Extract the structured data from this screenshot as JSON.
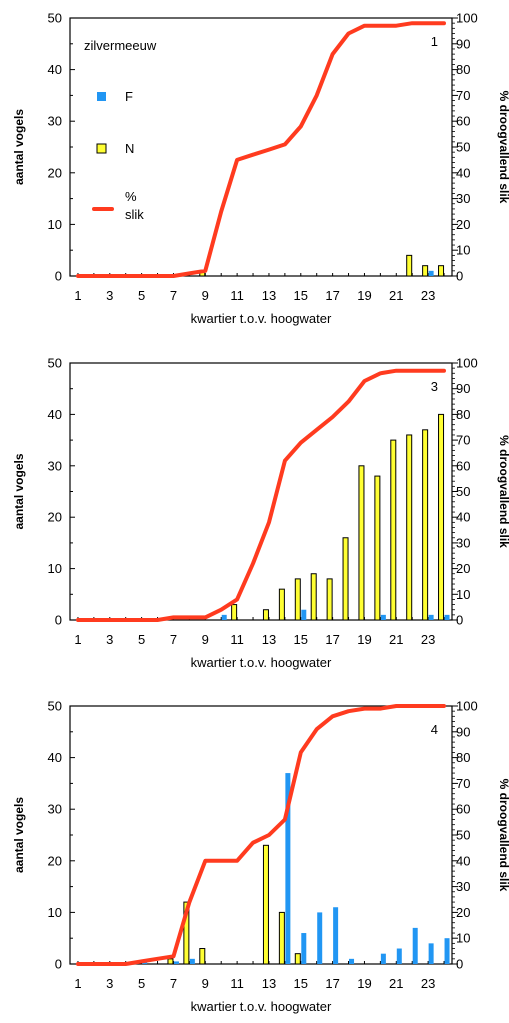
{
  "colors": {
    "F": "#2196f3",
    "N": "#ffff33",
    "slik": "#ff3b1f",
    "axis": "#000000"
  },
  "chart_data": [
    {
      "type": "bar",
      "panel_label": "1",
      "legend_title": "zilvermeeuw",
      "legend": {
        "F": "F",
        "N": "N",
        "slik": "%\nslik"
      },
      "xlabel": "kwartier t.o.v. hoogwater",
      "ylabel": "aantal vogels",
      "ylabel_right": "% droogvallend slik",
      "x_ticks": [
        1,
        3,
        5,
        7,
        9,
        11,
        13,
        15,
        17,
        19,
        21,
        23
      ],
      "y_ticks": [
        0,
        10,
        20,
        30,
        40,
        50
      ],
      "y2_ticks": [
        0,
        10,
        20,
        30,
        40,
        50,
        60,
        70,
        80,
        90,
        100
      ],
      "ylim": [
        0,
        50
      ],
      "y2lim": [
        0,
        100
      ],
      "xlim": [
        0.5,
        24.5
      ],
      "series": [
        {
          "name": "F",
          "x": [
            23
          ],
          "values": [
            1
          ]
        },
        {
          "name": "N",
          "x": [
            9,
            22,
            23,
            24
          ],
          "values": [
            1,
            4,
            2,
            2
          ]
        },
        {
          "name": "% slik",
          "axis": "right",
          "x": [
            1,
            2,
            3,
            4,
            5,
            6,
            7,
            8,
            9,
            10,
            11,
            12,
            13,
            14,
            15,
            16,
            17,
            18,
            19,
            20,
            21,
            22,
            23,
            24
          ],
          "values": [
            0,
            0,
            0,
            0,
            0,
            0,
            0,
            1,
            2,
            25,
            45,
            47,
            49,
            51,
            58,
            70,
            86,
            94,
            97,
            97,
            97,
            98,
            98,
            98
          ]
        }
      ]
    },
    {
      "type": "bar",
      "panel_label": "3",
      "xlabel": "kwartier t.o.v. hoogwater",
      "ylabel": "aantal vogels",
      "ylabel_right": "% droogvallend slik",
      "x_ticks": [
        1,
        3,
        5,
        7,
        9,
        11,
        13,
        15,
        17,
        19,
        21,
        23
      ],
      "y_ticks": [
        0,
        10,
        20,
        30,
        40,
        50
      ],
      "y2_ticks": [
        0,
        10,
        20,
        30,
        40,
        50,
        60,
        70,
        80,
        90,
        100
      ],
      "ylim": [
        0,
        50
      ],
      "y2lim": [
        0,
        100
      ],
      "xlim": [
        0.5,
        24.5
      ],
      "series": [
        {
          "name": "F",
          "x": [
            10,
            15,
            20,
            23,
            24
          ],
          "values": [
            1,
            2,
            1,
            1,
            1
          ]
        },
        {
          "name": "N",
          "x": [
            11,
            13,
            14,
            15,
            16,
            17,
            18,
            19,
            20,
            21,
            22,
            23,
            24
          ],
          "values": [
            3,
            2,
            6,
            8,
            9,
            8,
            16,
            30,
            28,
            35,
            36,
            37,
            40
          ]
        },
        {
          "name": "% slik",
          "axis": "right",
          "x": [
            1,
            2,
            3,
            4,
            5,
            6,
            7,
            8,
            9,
            10,
            11,
            12,
            13,
            14,
            15,
            16,
            17,
            18,
            19,
            20,
            21,
            22,
            23,
            24
          ],
          "values": [
            0,
            0,
            0,
            0,
            0,
            0,
            1,
            1,
            1,
            4,
            8,
            22,
            38,
            62,
            69,
            74,
            79,
            85,
            93,
            96,
            97,
            97,
            97,
            97
          ]
        }
      ]
    },
    {
      "type": "bar",
      "panel_label": "4",
      "xlabel": "kwartier t.o.v. hoogwater",
      "ylabel": "aantal vogels",
      "ylabel_right": "% droogvallend slik",
      "x_ticks": [
        1,
        3,
        5,
        7,
        9,
        11,
        13,
        15,
        17,
        19,
        21,
        23
      ],
      "y_ticks": [
        0,
        10,
        20,
        30,
        40,
        50
      ],
      "y2_ticks": [
        0,
        10,
        20,
        30,
        40,
        50,
        60,
        70,
        80,
        90,
        100
      ],
      "ylim": [
        0,
        50
      ],
      "y2lim": [
        0,
        100
      ],
      "xlim": [
        0.5,
        24.5
      ],
      "series": [
        {
          "name": "F",
          "x": [
            5,
            7,
            8,
            14,
            15,
            16,
            17,
            18,
            20,
            21,
            22,
            23,
            24
          ],
          "values": [
            0.5,
            0.5,
            1,
            37,
            6,
            10,
            11,
            1,
            2,
            3,
            7,
            4,
            5
          ]
        },
        {
          "name": "N",
          "x": [
            7,
            8,
            9,
            13,
            14,
            15
          ],
          "values": [
            1,
            12,
            3,
            23,
            10,
            2
          ]
        },
        {
          "name": "% slik",
          "axis": "right",
          "x": [
            1,
            2,
            3,
            4,
            5,
            6,
            7,
            8,
            9,
            10,
            11,
            12,
            13,
            14,
            15,
            16,
            17,
            18,
            19,
            20,
            21,
            22,
            23,
            24
          ],
          "values": [
            0,
            0,
            0,
            0,
            1,
            2,
            3,
            24,
            40,
            40,
            40,
            47,
            50,
            56,
            82,
            91,
            96,
            98,
            99,
            99,
            100,
            100,
            100,
            100
          ]
        }
      ]
    }
  ]
}
